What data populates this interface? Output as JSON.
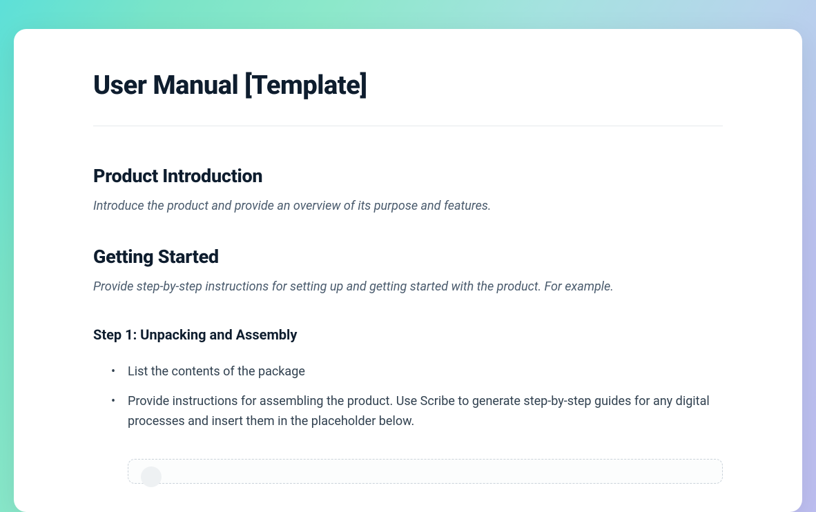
{
  "document": {
    "title": "User Manual [Template]",
    "background_gradient": [
      "#5de0d8",
      "#7ae4c8",
      "#8ce8ca",
      "#a5e2e0",
      "#b8d4ec",
      "#bbc2ef",
      "#bdbef0"
    ],
    "card_background": "#ffffff",
    "card_border_radius": 18,
    "title_color": "#0e1d2e",
    "title_fontsize": 38,
    "title_fontweight": 800,
    "divider_color": "#e5e8eb",
    "sections": [
      {
        "heading": "Product Introduction",
        "heading_fontsize": 27,
        "heading_color": "#0e1d2e",
        "description": "Introduce the product and provide an overview of its purpose and features.",
        "description_fontsize": 18,
        "description_color": "#4a5b6d",
        "description_style": "italic"
      },
      {
        "heading": "Getting Started",
        "heading_fontsize": 27,
        "heading_color": "#0e1d2e",
        "description": "Provide step-by-step instructions for setting up and getting started with the product. For example.",
        "description_fontsize": 18,
        "description_color": "#4a5b6d",
        "description_style": "italic",
        "steps": [
          {
            "title": "Step 1: Unpacking and Assembly",
            "title_fontsize": 20,
            "title_fontweight": 700,
            "title_color": "#0e1d2e",
            "bullets": [
              "List the contents of the package",
              "Provide instructions for assembling the product. Use Scribe to generate step-by-step guides for any digital processes and insert them in the placeholder below."
            ],
            "bullet_color": "#30404f",
            "bullet_fontsize": 18
          }
        ]
      }
    ],
    "placeholder": {
      "border_color": "#c9d1d9",
      "border_style": "dashed",
      "border_radius": 10,
      "background": "#fcfdfd",
      "circle_color": "#eef1f3"
    }
  }
}
